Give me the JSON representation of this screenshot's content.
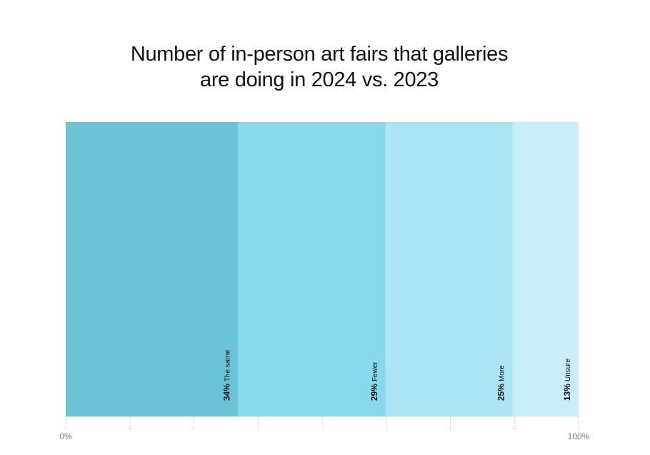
{
  "chart_data": {
    "type": "bar",
    "orientation": "stacked-100-percent",
    "title_lines": [
      "Number of in-person art fairs that galleries",
      "are doing in 2024 vs. 2023"
    ],
    "categories": [
      "The same",
      "Fewer",
      "More",
      "Unsure"
    ],
    "values": [
      34,
      29,
      25,
      13
    ],
    "value_labels": [
      "34%",
      "29%",
      "25%",
      "13%"
    ],
    "colors": [
      "#6bc4d6",
      "#88d9ea",
      "#a9e6f1",
      "#c9eef6"
    ],
    "axis": {
      "ticks": [
        0,
        12.5,
        25,
        37.5,
        50,
        62.5,
        75,
        87.5,
        100
      ],
      "tick_labels": {
        "start": "0%",
        "end": "100%"
      },
      "range": [
        0,
        100
      ]
    },
    "grid": false,
    "legend": "none"
  }
}
